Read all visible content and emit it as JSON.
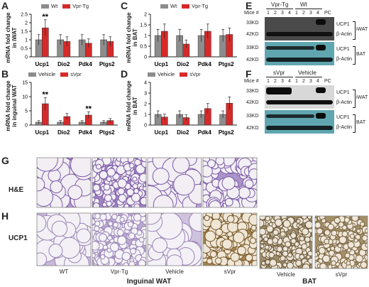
{
  "panels": {
    "A": {
      "letter": "A",
      "legend": [
        "Wt",
        "Vpr-Tg"
      ],
      "ylabel": "mRNA fold change\nin iWAT"
    },
    "B": {
      "letter": "B",
      "legend": [
        "Vehicle",
        "sVpr"
      ],
      "ylabel": "mRNA fold change\nin inguinal WAT"
    },
    "C": {
      "letter": "C",
      "legend": [
        "Wt",
        "Vpr-Tg"
      ],
      "ylabel": "mRNA fold change\nin BAT"
    },
    "D": {
      "letter": "D",
      "legend": [
        "Vehicle",
        "sVpr"
      ],
      "ylabel": "mRNA fold change\nin BAT"
    },
    "E": {
      "letter": "E",
      "groups": [
        "Vpr-Tg",
        "Wt"
      ],
      "mice_label": "Mice #",
      "lanes": [
        "1",
        "2",
        "3",
        "4",
        "1",
        "2",
        "3",
        "4"
      ],
      "pc": "PC",
      "markers": [
        "33KD",
        "42KD",
        "33KD",
        "42KD"
      ],
      "proteins": [
        "UCP1",
        "β-Actin",
        "UCP1",
        "β-Actin"
      ],
      "tissues": [
        "iWAT",
        "BAT"
      ]
    },
    "F": {
      "letter": "F",
      "groups": [
        "sVpr",
        "Vehicle"
      ],
      "mice_label": "Mice #",
      "lanes": [
        "1",
        "2",
        "3",
        "4",
        "1",
        "2",
        "3",
        "4"
      ],
      "pc": "PC",
      "markers": [
        "33KD",
        "42KD",
        "33KD",
        "42KD"
      ],
      "proteins": [
        "UCP1",
        "β-Actin",
        "UCP1",
        "β-Actin"
      ],
      "tissues": [
        "iWAT",
        "BAT"
      ]
    },
    "G": {
      "letter": "G",
      "row_label": "H&E"
    },
    "H": {
      "letter": "H",
      "row_label": "UCP1"
    }
  },
  "bottom_labels": [
    "WT",
    "Vpr-Tg",
    "Vehicle",
    "sVpr",
    "Vehicle",
    "sVpr"
  ],
  "group_labels": [
    "Inguinal WAT",
    "BAT"
  ],
  "colors": {
    "control": "#8c8c8c",
    "treated": "#d62a2a",
    "blot_dark": "#4a4a4a",
    "blot_teal": "#5fa6b0"
  },
  "chart_data": [
    {
      "panel": "A",
      "type": "bar",
      "categories": [
        "Ucp1",
        "Dio2",
        "Pdk4",
        "Ptgs2"
      ],
      "series": [
        {
          "name": "Wt",
          "values": [
            1.0,
            1.0,
            1.0,
            1.0
          ]
        },
        {
          "name": "Vpr-Tg",
          "values": [
            1.7,
            0.9,
            0.8,
            0.9
          ]
        }
      ],
      "ylim": [
        0,
        2.5
      ],
      "yticks": [
        0,
        0.5,
        1.0,
        1.5,
        2.0,
        2.5
      ],
      "annotations": [
        {
          "category": "Ucp1",
          "text": "**"
        }
      ]
    },
    {
      "panel": "B",
      "type": "bar",
      "categories": [
        "Ucp1",
        "Dio2",
        "Pdk4",
        "Ptgs2"
      ],
      "series": [
        {
          "name": "Vehicle",
          "values": [
            1.0,
            1.0,
            1.0,
            1.0
          ]
        },
        {
          "name": "sVpr",
          "values": [
            7.5,
            3.0,
            3.5,
            1.6
          ]
        }
      ],
      "ylim": [
        0,
        15
      ],
      "yticks": [
        0,
        5,
        10,
        15
      ],
      "annotations": [
        {
          "category": "Ucp1",
          "text": "**"
        },
        {
          "category": "Pdk4",
          "text": "**"
        }
      ]
    },
    {
      "panel": "C",
      "type": "bar",
      "categories": [
        "Ucp1",
        "Dio2",
        "Pdk4",
        "Ptgs2"
      ],
      "series": [
        {
          "name": "Wt",
          "values": [
            1.0,
            1.0,
            1.0,
            1.0
          ]
        },
        {
          "name": "Vpr-Tg",
          "values": [
            1.2,
            0.6,
            1.2,
            1.05
          ]
        }
      ],
      "ylim": [
        0,
        2.0
      ],
      "yticks": [
        0,
        0.5,
        1.0,
        1.5,
        2.0
      ],
      "annotations": []
    },
    {
      "panel": "D",
      "type": "bar",
      "categories": [
        "Ucp1",
        "Dio2",
        "Pdk4",
        "Ptgs2"
      ],
      "series": [
        {
          "name": "Vehicle",
          "values": [
            1.0,
            1.0,
            1.0,
            1.0
          ]
        },
        {
          "name": "sVpr",
          "values": [
            0.75,
            0.7,
            1.55,
            2.05
          ]
        }
      ],
      "ylim": [
        0,
        4
      ],
      "yticks": [
        0,
        1,
        2,
        3,
        4
      ],
      "annotations": []
    }
  ]
}
